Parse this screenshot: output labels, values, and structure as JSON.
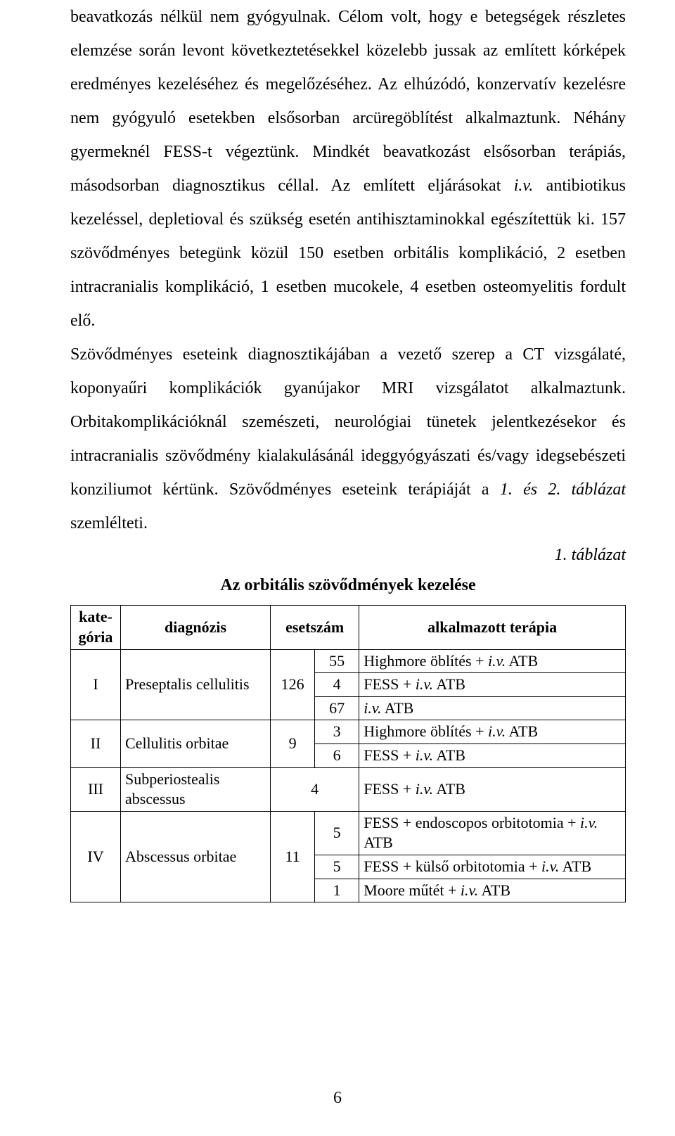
{
  "colors": {
    "background": "#ffffff",
    "text": "#000000",
    "table_border": "#000000"
  },
  "typography": {
    "body_font": "Times New Roman",
    "body_size_pt": 12,
    "line_height": 2.0,
    "table_size_pt": 11
  },
  "body": {
    "paragraph": "beavatkozás nélkül nem gyógyulnak. Célom volt, hogy e betegségek részletes elemzése során levont következtetésekkel közelebb jussak az említett kórképek eredményes kezeléséhez és megelőzéséhez. Az elhúzódó, konzervatív kezelésre nem gyógyuló esetekben elsősorban arcüregöblítést alkalmaztunk. Néhány gyermeknél FESS-t végeztünk. Mindkét beavatkozást elsősorban terápiás, másodsorban diagnosztikus céllal. Az említett eljárásokat ",
    "iv1": "i.v.",
    "after_iv1": " antibiotikus kezeléssel, depletioval és szükség esetén antihisztaminokkal egészítettük ki. 157 szövődményes betegünk közül 150 esetben orbitális komplikáció, 2 esetben intracranialis komplikáció, 1 esetben mucokele, 4 esetben osteomyelitis fordult elő.",
    "paragraph2a": "Szövődményes eseteink diagnosztikájában a vezető szerep a CT vizsgálaté, koponyaűri komplikációk gyanújakor MRI vizsgálatot alkalmaztunk. Orbitakomplikációknál szemészeti, neurológiai tünetek jelentkezésekor és intracranialis szövődmény kialakulásánál ideggyógyászati és/vagy idegsebészeti konziliumot kértünk. Szövődményes eseteink terápiáját a ",
    "tables_ref": "1. és 2. táblázat",
    "paragraph2b": " szemlélteti."
  },
  "table": {
    "label": "1. táblázat",
    "title": "Az orbitális szövődmények kezelése",
    "headers": {
      "cat": "kate-\ngória",
      "diag": "diagnózis",
      "count": "esetszám",
      "therapy": "alkalmazott terápia"
    },
    "rows": [
      {
        "cat": "I",
        "diag": "Preseptalis  cellulitis",
        "total": "126",
        "lines": [
          {
            "n": "55",
            "t_pre": "Highmore öblítés + ",
            "iv": "i.v.",
            "t_post": " ATB"
          },
          {
            "n": "4",
            "t_pre": "FESS + ",
            "iv": "i.v.",
            "t_post": " ATB"
          },
          {
            "n": "67",
            "t_pre": "",
            "iv": "i.v.",
            "t_post": " ATB"
          }
        ]
      },
      {
        "cat": "II",
        "diag": "Cellulitis orbitae",
        "total": "9",
        "lines": [
          {
            "n": "3",
            "t_pre": "Highmore öblítés + ",
            "iv": "i.v.",
            "t_post": " ATB"
          },
          {
            "n": "6",
            "t_pre": "FESS + ",
            "iv": "i.v.",
            "t_post": " ATB"
          }
        ]
      },
      {
        "cat": "III",
        "diag": "Subperiostealis abscessus",
        "total": "4",
        "lines": [
          {
            "n": "",
            "t_pre": "FESS + ",
            "iv": "i.v.",
            "t_post": " ATB"
          }
        ],
        "single_count": "4"
      },
      {
        "cat": "IV",
        "diag": "Abscessus orbitae",
        "total": "11",
        "lines": [
          {
            "n": "5",
            "t_pre": "FESS + endoscopos orbitotomia + ",
            "iv": "i.v.",
            "t_post": " ATB"
          },
          {
            "n": "5",
            "t_pre": "FESS + külső orbitotomia + ",
            "iv": "i.v.",
            "t_post": " ATB"
          },
          {
            "n": "1",
            "t_pre": "Moore műtét + ",
            "iv": "i.v.",
            "t_post": " ATB"
          }
        ]
      }
    ]
  },
  "page_number": "6"
}
